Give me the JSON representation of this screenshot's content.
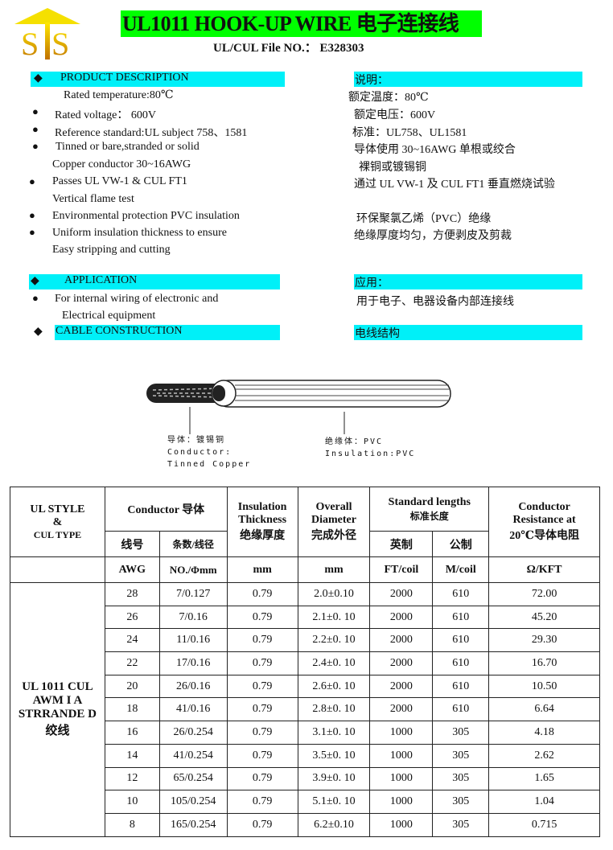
{
  "logo": {
    "text": "STS",
    "color": "#f5c400"
  },
  "title": "UL1011 HOOK-UP WIRE  电子连接线",
  "file_no": "UL/CUL File NO.： E328303",
  "colors": {
    "title_bg": "#00ff00",
    "section_bg": "#00f0f8"
  },
  "description": {
    "heading": "PRODUCT    DESCRIPTION",
    "heading_cn": "说明：",
    "en": [
      "Rated temperature:80℃",
      "Rated voltage： 600V",
      "Reference standard:UL subject 758、1581",
      "Tinned or bare,stranded or solid",
      "Copper conductor 30~16AWG",
      "Passes UL VW-1  &  CUL FT1",
      "Vertical flame test",
      "Environmental protection PVC insulation",
      "Uniform insulation thickness to ensure",
      "Easy stripping and cutting"
    ],
    "cn": [
      "额定温度：80℃",
      "额定电压：600V",
      "标准：UL758、UL1581",
      "导体使用 30~16AWG 单根或绞合",
      "裸铜或镀锡铜",
      "通过 UL VW-1 及 CUL FT1 垂直燃烧试验",
      "环保聚氯乙烯（PVC）绝缘",
      "绝缘厚度均匀，方便剥皮及剪裁"
    ]
  },
  "application": {
    "heading": "APPLICATION",
    "heading_cn": "应用：",
    "en": [
      "For internal wiring of electronic and",
      "Electrical equipment"
    ],
    "cn": "用于电子、电器设备内部连接线"
  },
  "construction": {
    "heading": "CABLE CONSTRUCTION",
    "heading_cn": "电线结构",
    "conductor_label": [
      "导体：镀锡铜",
      "Conductor:",
      "Tinned Copper"
    ],
    "insulation_label": [
      "绝缘体：PVC",
      "Insulation:PVC"
    ]
  },
  "table": {
    "headers": {
      "style": [
        "UL STYLE",
        "&",
        "CUL TYPE"
      ],
      "conductor": "Conductor 导体",
      "gauge_cn": "线号",
      "strand_cn": "条数/线径",
      "insulation": [
        "Insulation",
        "Thickness",
        "绝缘厚度"
      ],
      "diameter": [
        "Overall",
        "Diameter",
        "完成外径"
      ],
      "lengths": [
        "Standard lengths",
        "标准长度"
      ],
      "imperial_cn": "英制",
      "metric_cn": "公制",
      "resistance": [
        "Conductor",
        "Resistance at",
        "20℃导体电阻"
      ]
    },
    "units": [
      "AWG",
      "NO./Φmm",
      "mm",
      "mm",
      "FT/coil",
      "M/coil",
      "Ω/KFT"
    ],
    "style_value": "UL 1011 CUL AWM  I  A STRRANDE D绞线",
    "rows": [
      [
        "28",
        "7/0.127",
        "0.79",
        "2.0±0.10",
        "2000",
        "610",
        "72.00"
      ],
      [
        "26",
        "7/0.16",
        "0.79",
        "2.1±0. 10",
        "2000",
        "610",
        "45.20"
      ],
      [
        "24",
        "11/0.16",
        "0.79",
        "2.2±0. 10",
        "2000",
        "610",
        "29.30"
      ],
      [
        "22",
        "17/0.16",
        "0.79",
        "2.4±0. 10",
        "2000",
        "610",
        "16.70"
      ],
      [
        "20",
        "26/0.16",
        "0.79",
        "2.6±0. 10",
        "2000",
        "610",
        "10.50"
      ],
      [
        "18",
        "41/0.16",
        "0.79",
        "2.8±0. 10",
        "2000",
        "610",
        "6.64"
      ],
      [
        "16",
        "26/0.254",
        "0.79",
        "3.1±0. 10",
        "1000",
        "305",
        "4.18"
      ],
      [
        "14",
        "41/0.254",
        "0.79",
        "3.5±0. 10",
        "1000",
        "305",
        "2.62"
      ],
      [
        "12",
        "65/0.254",
        "0.79",
        "3.9±0. 10",
        "1000",
        "305",
        "1.65"
      ],
      [
        "10",
        "105/0.254",
        "0.79",
        "5.1±0. 10",
        "1000",
        "305",
        "1.04"
      ],
      [
        "8",
        "165/0.254",
        "0.79",
        "6.2±0.10",
        "1000",
        "305",
        "0.715"
      ]
    ]
  }
}
